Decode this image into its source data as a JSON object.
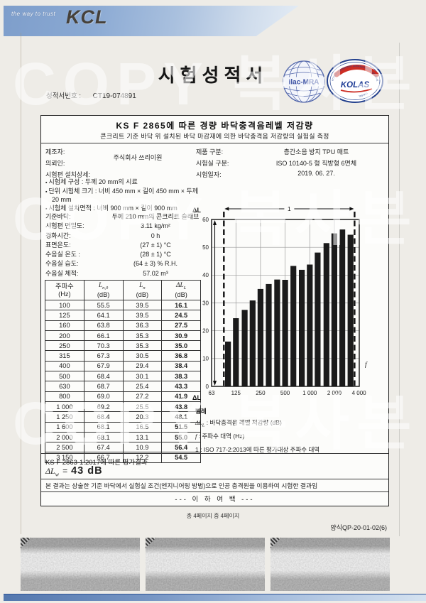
{
  "page": {
    "watermark": "COPY 복사본",
    "footer_pages": "총 4페이지 중 4페이지",
    "form_code": "양식QP-20-01-02(6)"
  },
  "header": {
    "logo_tagline": "the way to trust",
    "logo_text": "KCL",
    "title": "시험성적서",
    "report_no_label": "성적서번호 :",
    "report_no": "CT19-074891",
    "seals": {
      "ilac": "ilac-MRA",
      "kolas": "KOLAS",
      "kolas_ring_top": "KOREA LABORATORY ACCREDITATION SCHEME",
      "kolas_ring_bottom": "TESTING"
    }
  },
  "report": {
    "title": "KS F 2865에 따른 경량 바닥충격음레벨 저감량",
    "subtitle": "콘크리트 기준 바닥 위 설치된 바닥 마감재에 의한 바닥충격음 저감량의 실험실 측정",
    "info": {
      "manufacturer_label": "제조자:",
      "client_label": "의뢰인:",
      "company": "주식회사 쓰리이원",
      "install_label": "시험편 설치상세:",
      "product_label": "제품 구분:",
      "product": "층간소음 방지 TPU 매트",
      "lab_label": "시험실 구분:",
      "lab": "ISO 10140-5 형 직방형 6면체",
      "date_label": "시험일자:",
      "date": "2019. 06. 27."
    },
    "specimen_details": [
      "시험체 구성 : 두께 20 mm의 시료",
      "단위 시험체 크기 : 너비 450 mm × 길이 450 mm × 두께 20 mm",
      "시험체 설치면적 : 너비 900 mm × 길이  900 mm"
    ],
    "conditions": [
      {
        "label": "기준바닥:",
        "value": "두께 210 mm의 콘크리트 슬래브"
      },
      {
        "label": "시험편 면밀도:",
        "value": "3.11 kg/m²"
      },
      {
        "label": "경화시간:",
        "value": "0 h"
      },
      {
        "label": "표면온도:",
        "value": "(27 ± 1) °C"
      },
      {
        "label": "수음실 온도 :",
        "value": "(28 ± 1) °C"
      },
      {
        "label": "수음실 습도:",
        "value": "(64 ± 3) % R.H."
      },
      {
        "label": "수음실 체적:",
        "value": "57.02 m³"
      }
    ],
    "legend": {
      "heading": "범례",
      "items": [
        {
          "sym": "ΔL",
          "sub": "L",
          "italic": true,
          "desc": " : 바닥충격음 레벨 저감량 (dB)"
        },
        {
          "sym": "f",
          "sub": "",
          "italic": true,
          "desc": " : 주파수 대역 (Hz)"
        },
        {
          "sym": "1",
          "sub": "",
          "italic": false,
          "desc": " : ISO 717-2:2013에 따른 평가대상 주파수 대역"
        }
      ]
    },
    "evaluation": {
      "heading": "KS F 2863-1:2017에 따른 평가결과",
      "formula_prefix": "ΔL",
      "formula_sub": "w",
      "formula_eq": "=",
      "formula_value": "43 dB",
      "note": "본 결과는 상술한 기준 바닥에서 실험실 조건(엔지니어링 방법)으로 인공 충격원을 이용하여 시험한 결과임",
      "end_text": "--- 이 하 여 백 ---"
    }
  },
  "table": {
    "headers": [
      {
        "line1": "주파수",
        "sub": "",
        "line2": "(Hz)",
        "italic": false
      },
      {
        "line1": "L",
        "sub": "n,0",
        "line2": "(dB)",
        "italic": true
      },
      {
        "line1": "L",
        "sub": "n",
        "line2": "(dB)",
        "italic": true
      },
      {
        "line1": "ΔL",
        "sub": "L",
        "line2": "(dB)",
        "italic": true
      }
    ],
    "rows": [
      [
        "100",
        "55.5",
        "39.5",
        "16.1"
      ],
      [
        "125",
        "64.1",
        "39.5",
        "24.5"
      ],
      [
        "160",
        "63.8",
        "36.3",
        "27.5"
      ],
      [
        "200",
        "66.1",
        "35.3",
        "30.9"
      ],
      [
        "250",
        "70.3",
        "35.3",
        "35.0"
      ],
      [
        "315",
        "67.3",
        "30.5",
        "36.8"
      ],
      [
        "400",
        "67.9",
        "29.4",
        "38.4"
      ],
      [
        "500",
        "68.4",
        "30.1",
        "38.3"
      ],
      [
        "630",
        "68.7",
        "25.4",
        "43.3"
      ],
      [
        "800",
        "69.0",
        "27.2",
        "41.9"
      ],
      [
        "1 000",
        "69.2",
        "25.5",
        "43.8"
      ],
      [
        "1 250",
        "68.4",
        "20.3",
        "48.1"
      ],
      [
        "1 600",
        "68.1",
        "16.5",
        "51.5"
      ],
      [
        "2 000",
        "68.1",
        "13.1",
        "55.0"
      ],
      [
        "2 500",
        "67.4",
        "10.9",
        "56.4"
      ],
      [
        "3 150",
        "66.7",
        "12.2",
        "54.5"
      ]
    ]
  },
  "chart_data": {
    "type": "bar",
    "title": "",
    "ylabel": "ΔL",
    "xlabel": "f",
    "ylim": [
      0,
      60
    ],
    "ytick_step": 10,
    "x_scale": "log",
    "xtick_values": [
      63,
      125,
      250,
      500,
      1000,
      2000,
      4000
    ],
    "xtick_labels": [
      "63",
      "125",
      "250",
      "500",
      "1 000",
      "2 000",
      "4 000"
    ],
    "frequencies": [
      100,
      125,
      160,
      200,
      250,
      315,
      400,
      500,
      630,
      800,
      1000,
      1250,
      1600,
      2000,
      2500,
      3150
    ],
    "values": [
      16.1,
      24.5,
      27.5,
      30.9,
      35.0,
      36.8,
      38.4,
      38.3,
      43.3,
      41.9,
      43.8,
      48.1,
      51.5,
      55.0,
      56.4,
      54.5
    ],
    "bar_color": "#1b1b1b",
    "grid": true,
    "rated_range_marker": "1",
    "rated_range": [
      100,
      3150
    ]
  }
}
